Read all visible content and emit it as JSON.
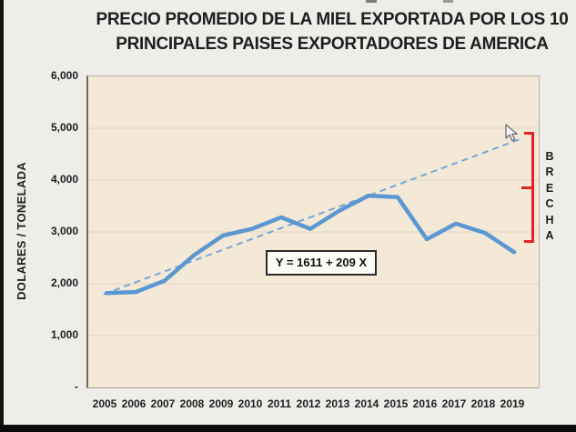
{
  "title": {
    "line1": "PRECIO PROMEDIO DE LA MIEL EXPORTADA POR LOS 10",
    "line2": "PRINCIPALES PAISES EXPORTADORES DE AMERICA"
  },
  "chart_data": {
    "type": "line",
    "title": "PRECIO PROMEDIO DE LA MIEL EXPORTADA POR LOS 10 PRINCIPALES PAISES EXPORTADORES DE AMERICA",
    "xlabel": "",
    "ylabel": "DOLARES / TONELADA",
    "x": [
      2005,
      2006,
      2007,
      2008,
      2009,
      2010,
      2011,
      2012,
      2013,
      2014,
      2015,
      2016,
      2017,
      2018,
      2019
    ],
    "series": [
      {
        "name": "precio-promedio-miel",
        "type": "line",
        "color": "#5b97d2",
        "values": [
          1820,
          1840,
          2060,
          2550,
          2930,
          3060,
          3280,
          3060,
          3410,
          3700,
          3670,
          2860,
          3160,
          2980,
          2610
        ]
      },
      {
        "name": "tendencia-lineal",
        "type": "trendline",
        "style": "dashed",
        "color": "#78a5d8",
        "equation": "Y = 1611 + 209 X",
        "intercept": 1611,
        "slope": 209,
        "x_index_range": [
          0.9,
          15.3
        ]
      }
    ],
    "ylim": [
      0,
      6000
    ],
    "yticks": [
      {
        "label": "6,000",
        "value": 6000
      },
      {
        "label": "5,000",
        "value": 5000
      },
      {
        "label": "4,000",
        "value": 4000
      },
      {
        "label": "3,000",
        "value": 3000
      },
      {
        "label": "2,000",
        "value": 2000
      },
      {
        "label": "1,000",
        "value": 1000
      },
      {
        "label": "-",
        "value": 0
      }
    ],
    "grid": "horizontal",
    "legend": "none",
    "plot_bg_color": "#f4e9d7",
    "gridline_color": "#ded5c6"
  },
  "annotations": {
    "equation_label": "Y = 1611 + 209 X",
    "gap": {
      "label": "BRECHA",
      "orientation": "vertical",
      "color": "#e02323",
      "x_year": 2019.7,
      "from_value": 2770,
      "to_value": 4910
    }
  },
  "icons": {
    "cursor": "mouse-arrow-pointer"
  }
}
